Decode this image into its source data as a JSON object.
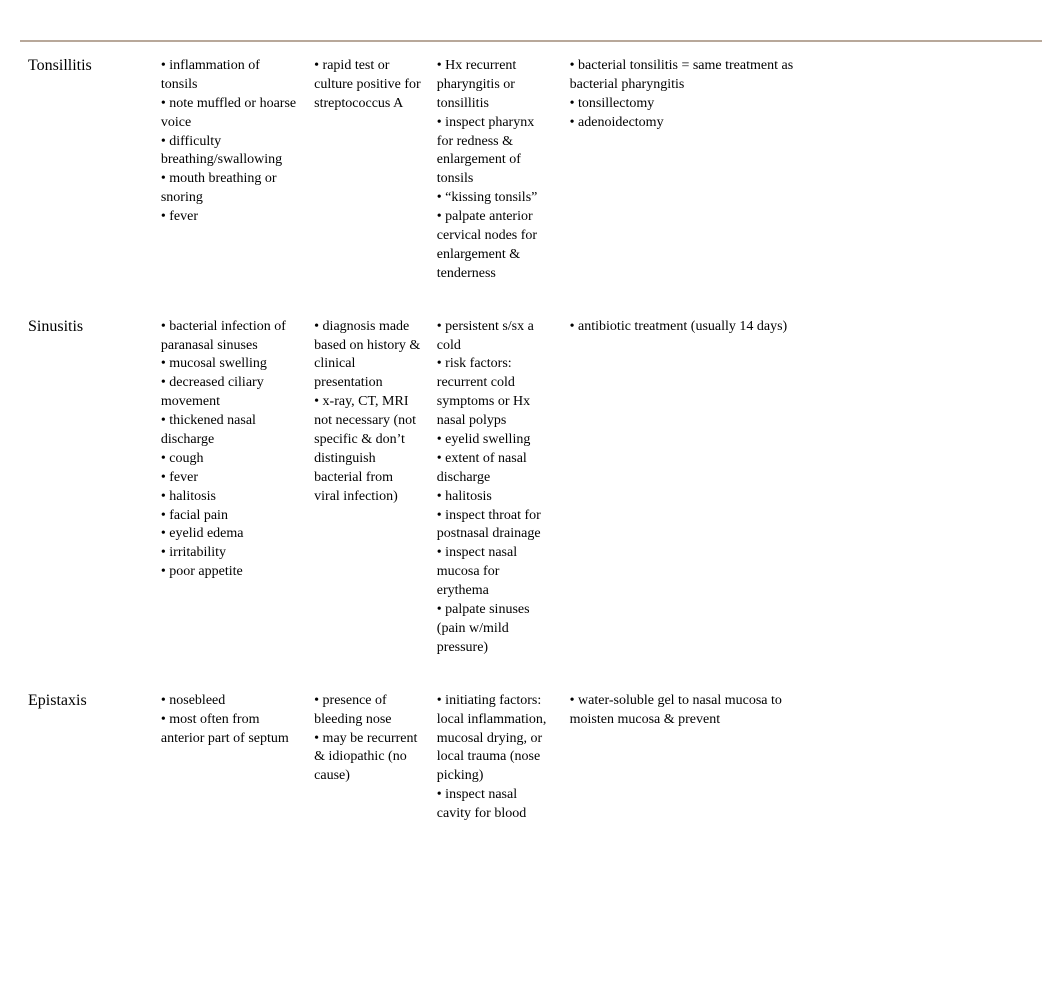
{
  "rows": [
    {
      "name": "Tonsillitis",
      "description": [
        "inflammation of tonsils",
        "note muffled or hoarse voice",
        "difficulty breathing/swallowing",
        "mouth breathing or snoring",
        "fever"
      ],
      "diagnosis": [
        "rapid test or culture positive for streptococcus A"
      ],
      "assessment": [
        "Hx recurrent pharyngitis or tonsillitis",
        "inspect pharynx for redness & enlargement of tonsils",
        "“kissing tonsils”",
        "palpate anterior cervical nodes for enlargement & tenderness"
      ],
      "treatment": [
        "bacterial tonsilitis = same treatment as bacterial pharyngitis",
        "tonsillectomy",
        "adenoidectomy"
      ],
      "c6": [],
      "c7": []
    },
    {
      "name": "Sinusitis",
      "description": [
        "bacterial infection of paranasal sinuses",
        "mucosal swelling",
        "decreased ciliary movement",
        "thickened nasal discharge",
        "cough",
        "fever",
        "halitosis",
        "facial pain",
        "eyelid edema",
        "irritability",
        "poor appetite"
      ],
      "diagnosis": [
        "diagnosis made based on history & clinical presentation",
        "x-ray, CT, MRI not necessary (not specific & don’t distinguish bacterial from viral infection)"
      ],
      "assessment": [
        " persistent s/sx a cold",
        "risk factors: recurrent cold symptoms or Hx nasal polyps",
        "eyelid swelling",
        "extent of nasal discharge",
        "halitosis",
        "inspect throat for postnasal drainage",
        "inspect nasal mucosa for erythema",
        "palpate sinuses (pain w/mild pressure)"
      ],
      "treatment": [
        "antibiotic treatment (usually 14 days)"
      ],
      "c6": [],
      "c7": []
    },
    {
      "name": "Epistaxis",
      "description": [
        "nosebleed",
        "most often from anterior part of septum"
      ],
      "diagnosis": [
        "presence of bleeding nose",
        "may be recurrent & idiopathic (no cause)"
      ],
      "assessment": [
        "initiating factors: local inflammation, mucosal drying, or local trauma (nose picking)",
        "inspect nasal cavity for blood"
      ],
      "treatment": [
        "water-soluble gel to nasal mucosa to moisten mucosa & prevent"
      ],
      "c6": [],
      "c7": []
    }
  ]
}
